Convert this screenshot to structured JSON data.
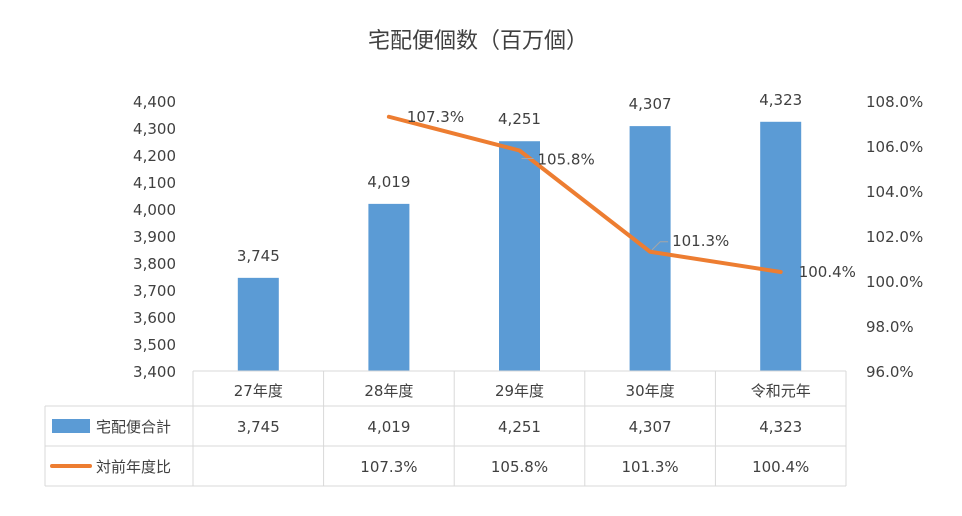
{
  "chart_data": {
    "type": "bar",
    "title": "宅配便個数（百万個）",
    "categories": [
      "27年度",
      "28年度",
      "29年度",
      "30年度",
      "令和元年"
    ],
    "series": [
      {
        "name": "宅配便合計",
        "kind": "bar",
        "axis": "left",
        "color": "#5B9BD5",
        "values": [
          3745,
          4019,
          4251,
          4307,
          4323
        ],
        "labels": [
          "3,745",
          "4,019",
          "4,251",
          "4,307",
          "4,323"
        ]
      },
      {
        "name": "対前年度比",
        "kind": "line",
        "axis": "right",
        "color": "#ED7D31",
        "values": [
          null,
          107.3,
          105.8,
          101.3,
          100.4
        ],
        "labels": [
          "",
          "107.3%",
          "105.8%",
          "101.3%",
          "100.4%"
        ]
      }
    ],
    "y_left": {
      "min": 3400,
      "max": 4400,
      "step": 100,
      "ticks": [
        "3,400",
        "3,500",
        "3,600",
        "3,700",
        "3,800",
        "3,900",
        "4,000",
        "4,100",
        "4,200",
        "4,300",
        "4,400"
      ]
    },
    "y_right": {
      "min": 96.0,
      "max": 108.0,
      "step": 2,
      "ticks": [
        "96.0%",
        "98.0%",
        "100.0%",
        "102.0%",
        "104.0%",
        "106.0%",
        "108.0%"
      ]
    },
    "grid": false,
    "legend": "data-table-below"
  }
}
